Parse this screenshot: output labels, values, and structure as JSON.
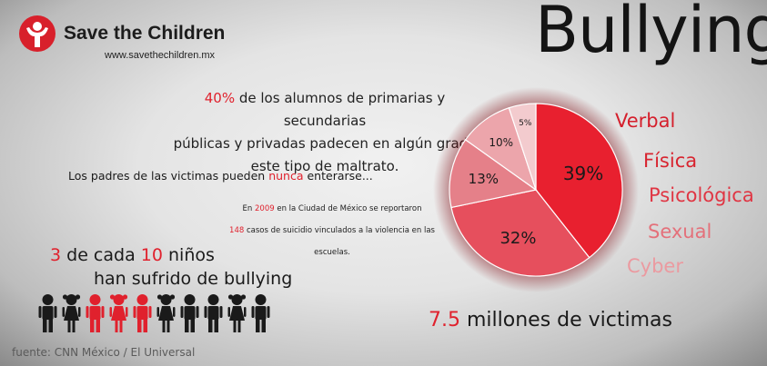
{
  "brand": {
    "name": "Save the Children",
    "url": "www.savethechildren.mx"
  },
  "title": "Bullying",
  "stat_abuse": {
    "percent": "40%",
    "line1_rest": "de los alumnos de primarias y secundarias",
    "line2": "públicas y privadas padecen en algún grado",
    "line3": "este tipo de maltrato."
  },
  "parents": {
    "before": "Los padres de las victimas pueden",
    "highlight": "nunca",
    "after": "enterarse..."
  },
  "mexico_city": {
    "prefix": "En",
    "year": "2009",
    "line1_rest": "en la Ciudad de México se reportaron",
    "count": "148",
    "line2_rest": "casos de suicidio vinculados a la violencia en las escuelas."
  },
  "kids": {
    "num1": "3",
    "mid": "de cada",
    "num2": "10",
    "end": "niños",
    "line2": "han sufrido de bullying",
    "icons": [
      "boy",
      "girl",
      "boy-red",
      "girl-red",
      "boy-red",
      "girl",
      "boy",
      "boy",
      "girl",
      "boy"
    ]
  },
  "victims": {
    "number": "7.5",
    "text": "millones de victimas"
  },
  "source": "fuente: CNN México / El Universal",
  "colors": {
    "accent": "#e0212d",
    "dark": "#1a1a1a"
  },
  "chart_data": {
    "type": "pie",
    "categories": [
      "Verbal",
      "Física",
      "Psicológica",
      "Sexual",
      "Cyber"
    ],
    "values": [
      39,
      32,
      13,
      10,
      5
    ],
    "labels": [
      "39%",
      "32%",
      "13%",
      "10%",
      "5%"
    ],
    "colors": [
      "#e8202f",
      "#e64f5d",
      "#e58089",
      "#eca5ab",
      "#f3cbce"
    ],
    "legend_colors": [
      "#d51f2c",
      "#d8242f",
      "#e03543",
      "#e4707a",
      "#eb9aa0"
    ],
    "legend_placement": "right"
  }
}
